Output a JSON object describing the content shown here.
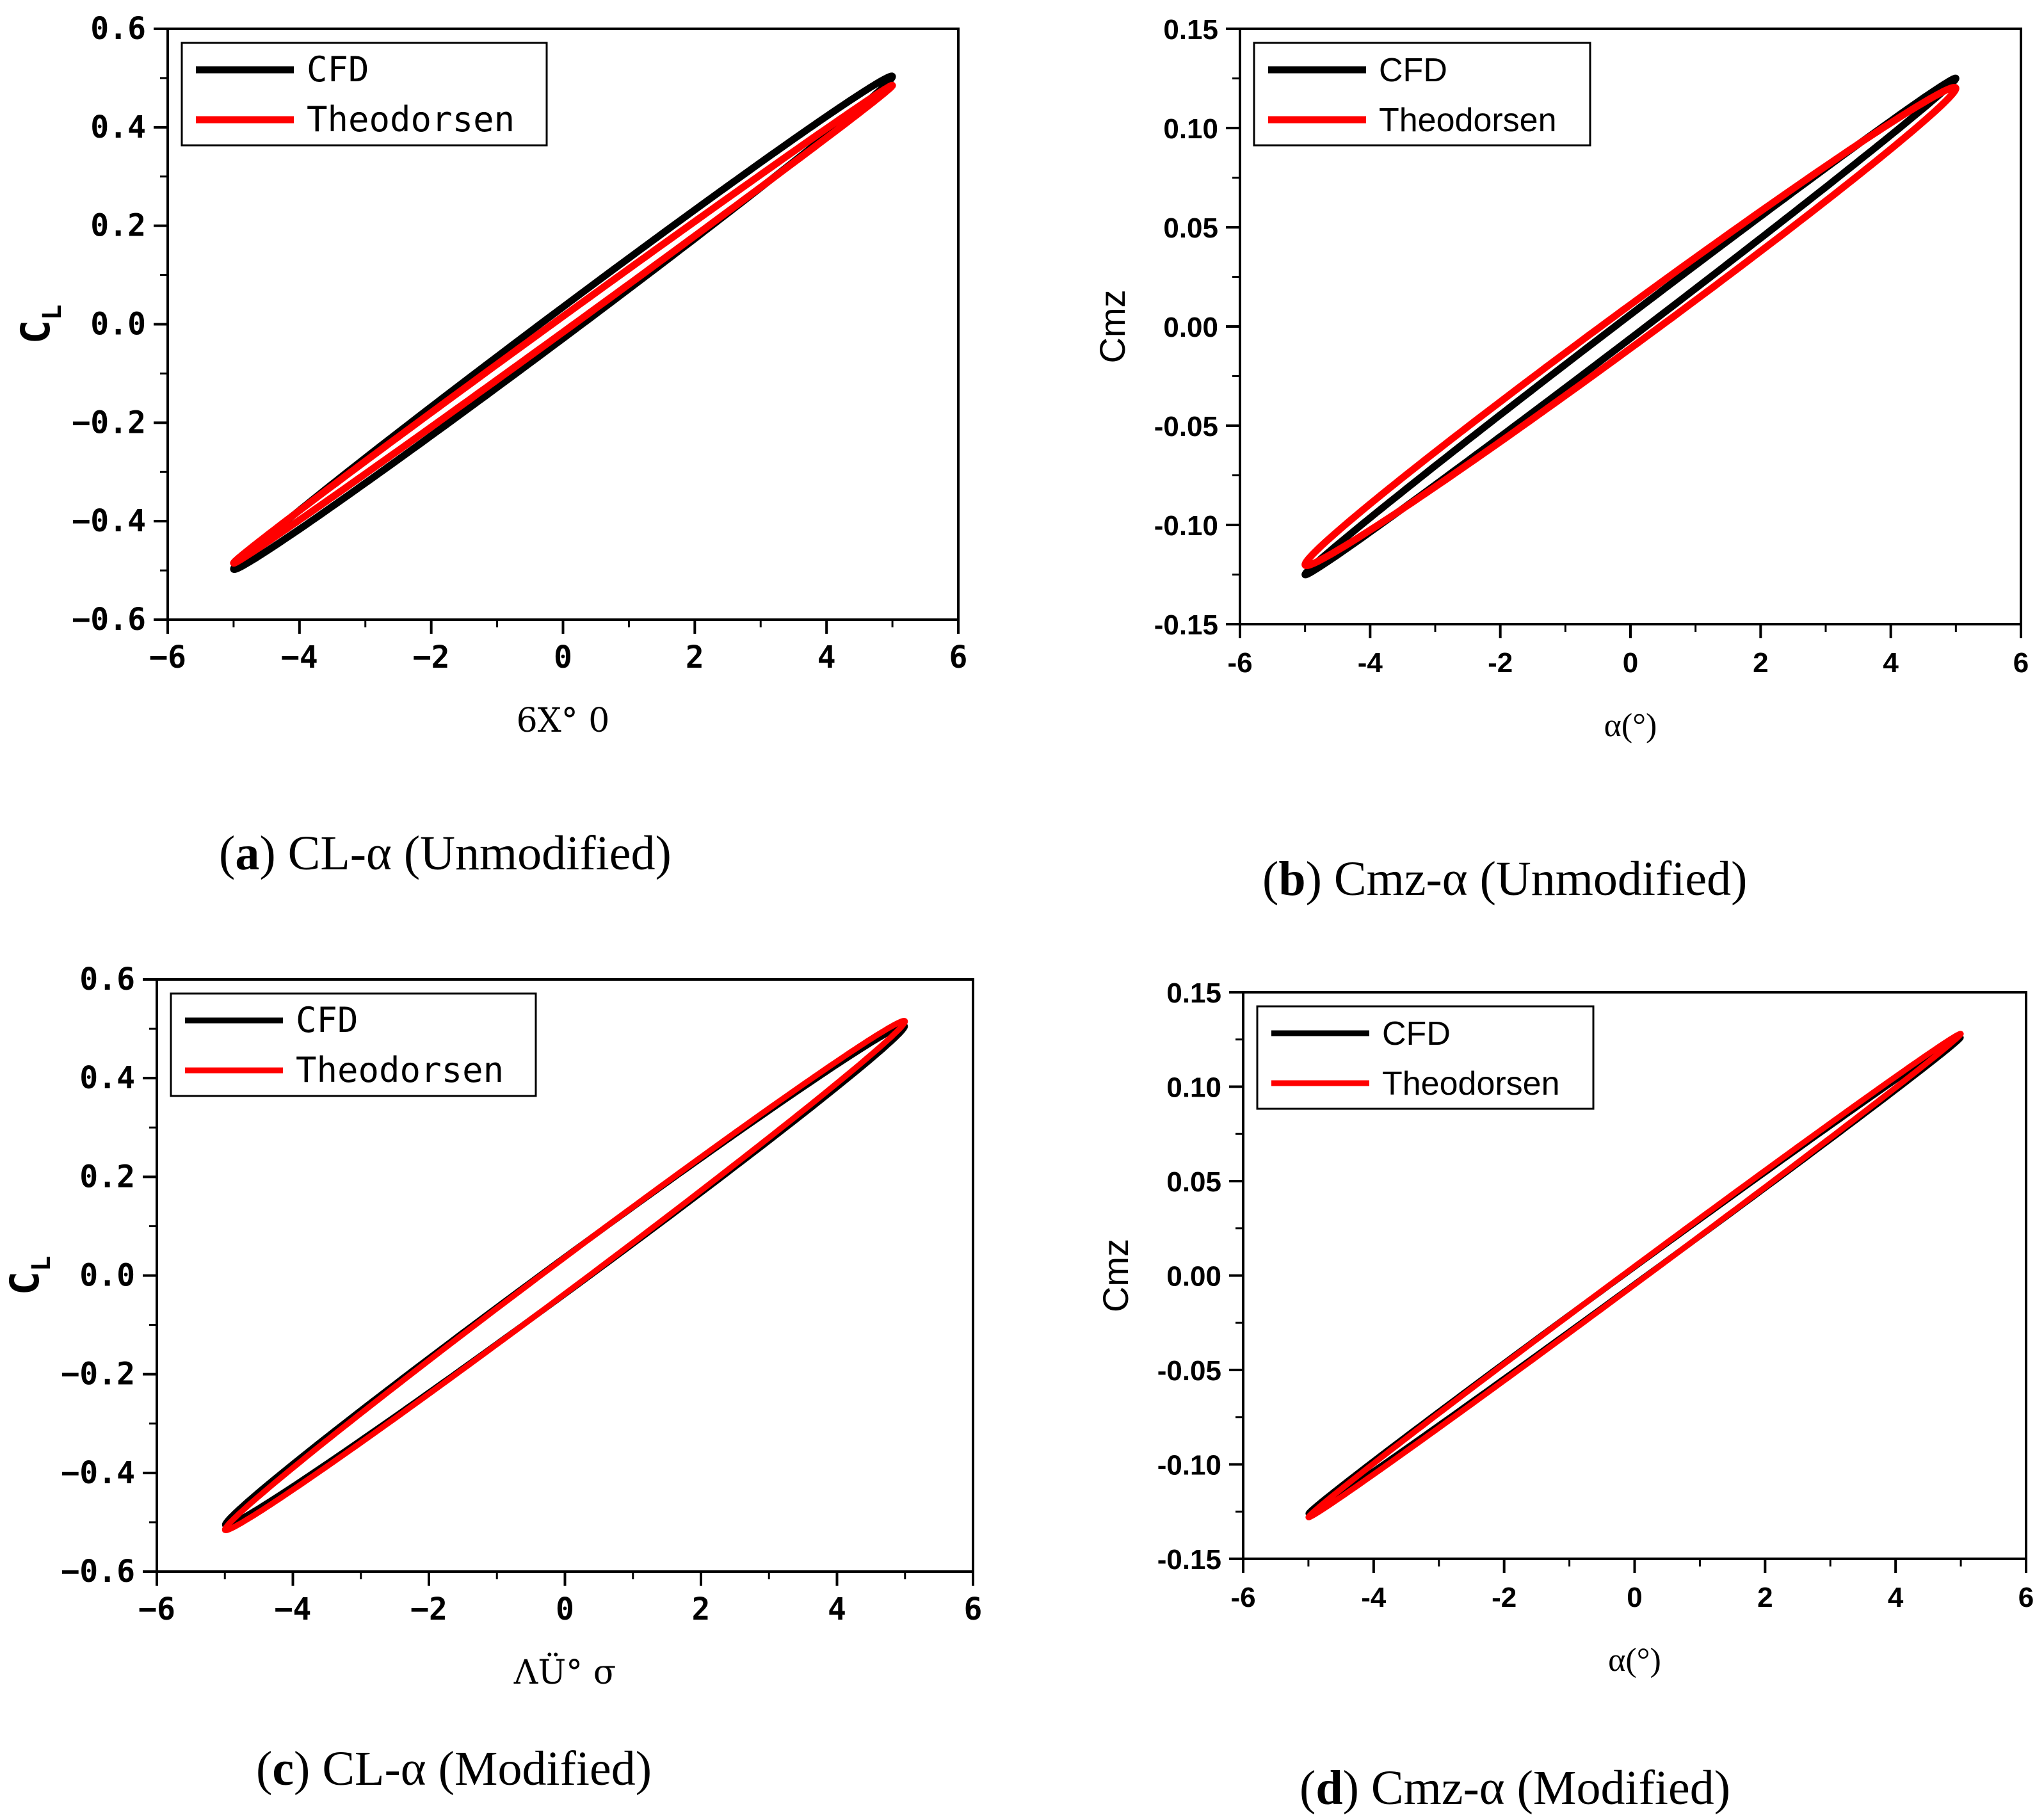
{
  "colors": {
    "cfd": "#000000",
    "theodorsen": "#ff0000",
    "axis": "#000000",
    "background": "#ffffff"
  },
  "chart_data": [
    {
      "type": "line",
      "id": "a",
      "caption": {
        "letter": "a",
        "text": "CL-α (Unmodified)"
      },
      "title": "",
      "xlabel": "6X° 0",
      "ylabel": "C",
      "ylabel_sub": "L",
      "xlim": [
        -6,
        6
      ],
      "ylim": [
        -0.6,
        0.6
      ],
      "xticks": [
        -6,
        -4,
        -2,
        0,
        2,
        4,
        6
      ],
      "xtick_labels": [
        "−6",
        "−4",
        "−2",
        "0",
        "2",
        "4",
        "6"
      ],
      "yticks": [
        -0.6,
        -0.4,
        -0.2,
        0.0,
        0.2,
        0.4,
        0.6
      ],
      "ytick_labels": [
        "−0.6",
        "−0.4",
        "−0.2",
        "0.0",
        "0.2",
        "0.4",
        "0.6"
      ],
      "tick_style": "serif",
      "grid": false,
      "legend": {
        "position": "top-left",
        "entries": [
          "CFD",
          "Theodorsen"
        ]
      },
      "series": [
        {
          "name": "CFD",
          "color": "#000000",
          "amplitude": 5,
          "slope": 0.1,
          "offset": 0.003,
          "half_width": 0.032,
          "line": "thick"
        },
        {
          "name": "Theodorsen",
          "color": "#ff0000",
          "amplitude": 5,
          "slope": 0.097,
          "offset": 0.0,
          "half_width": 0.016,
          "line": "thick"
        }
      ]
    },
    {
      "type": "line",
      "id": "b",
      "caption": {
        "letter": "b",
        "text": "Cmz-α (Unmodified)"
      },
      "title": "",
      "xlabel": "α(°)",
      "ylabel": "Cmz",
      "ylabel_sub": "",
      "xlim": [
        -6,
        6
      ],
      "ylim": [
        -0.15,
        0.15
      ],
      "xticks": [
        -6,
        -4,
        -2,
        0,
        2,
        4,
        6
      ],
      "xtick_labels": [
        "-6",
        "-4",
        "-2",
        "0",
        "2",
        "4",
        "6"
      ],
      "yticks": [
        -0.15,
        -0.1,
        -0.05,
        0.0,
        0.05,
        0.1,
        0.15
      ],
      "ytick_labels": [
        "-0.15",
        "-0.10",
        "-0.05",
        "0.00",
        "0.05",
        "0.10",
        "0.15"
      ],
      "tick_style": "sans",
      "grid": false,
      "legend": {
        "position": "top-left",
        "entries": [
          "CFD",
          "Theodorsen"
        ]
      },
      "series": [
        {
          "name": "CFD",
          "color": "#000000",
          "amplitude": 5,
          "slope": 0.025,
          "offset": 0.0,
          "half_width": 0.006,
          "line": "thick"
        },
        {
          "name": "Theodorsen",
          "color": "#ff0000",
          "amplitude": 5,
          "slope": 0.024,
          "offset": 0.0,
          "half_width": 0.011,
          "line": "thick"
        }
      ]
    },
    {
      "type": "line",
      "id": "c",
      "caption": {
        "letter": "c",
        "text": "CL-α (Modified)"
      },
      "title": "",
      "xlabel": "ΛÜ° σ",
      "ylabel": "C",
      "ylabel_sub": "L",
      "xlim": [
        -6,
        6
      ],
      "ylim": [
        -0.6,
        0.6
      ],
      "xticks": [
        -6,
        -4,
        -2,
        0,
        2,
        4,
        6
      ],
      "xtick_labels": [
        "−6",
        "−4",
        "−2",
        "0",
        "2",
        "4",
        "6"
      ],
      "yticks": [
        -0.6,
        -0.4,
        -0.2,
        0.0,
        0.2,
        0.4,
        0.6
      ],
      "ytick_labels": [
        "−0.6",
        "−0.4",
        "−0.2",
        "0.0",
        "0.2",
        "0.4",
        "0.6"
      ],
      "tick_style": "serif",
      "grid": false,
      "legend": {
        "position": "top-left",
        "entries": [
          "CFD",
          "Theodorsen"
        ]
      },
      "series": [
        {
          "name": "CFD",
          "color": "#000000",
          "amplitude": 5,
          "slope": 0.101,
          "offset": 0.0,
          "half_width": 0.038,
          "line": "thin"
        },
        {
          "name": "Theodorsen",
          "color": "#ff0000",
          "amplitude": 5,
          "slope": 0.103,
          "offset": 0.0,
          "half_width": 0.037,
          "line": "thin"
        }
      ]
    },
    {
      "type": "line",
      "id": "d",
      "caption": {
        "letter": "d",
        "text": "Cmz-α (Modified)"
      },
      "title": "",
      "xlabel": "α(°)",
      "ylabel": "Cmz",
      "ylabel_sub": "",
      "xlim": [
        -6,
        6
      ],
      "ylim": [
        -0.15,
        0.15
      ],
      "xticks": [
        -6,
        -4,
        -2,
        0,
        2,
        4,
        6
      ],
      "xtick_labels": [
        "-6",
        "-4",
        "-2",
        "0",
        "2",
        "4",
        "6"
      ],
      "yticks": [
        -0.15,
        -0.1,
        -0.05,
        0.0,
        0.05,
        0.1,
        0.15
      ],
      "ytick_labels": [
        "-0.15",
        "-0.10",
        "-0.05",
        "0.00",
        "0.05",
        "0.10",
        "0.15"
      ],
      "tick_style": "sans",
      "grid": false,
      "legend": {
        "position": "top-left",
        "entries": [
          "CFD",
          "Theodorsen"
        ]
      },
      "series": [
        {
          "name": "CFD",
          "color": "#000000",
          "amplitude": 5,
          "slope": 0.0252,
          "offset": 0.0,
          "half_width": 0.0045,
          "line": "thin"
        },
        {
          "name": "Theodorsen",
          "color": "#ff0000",
          "amplitude": 5,
          "slope": 0.0256,
          "offset": 0.0,
          "half_width": 0.0048,
          "line": "thin"
        }
      ]
    }
  ]
}
